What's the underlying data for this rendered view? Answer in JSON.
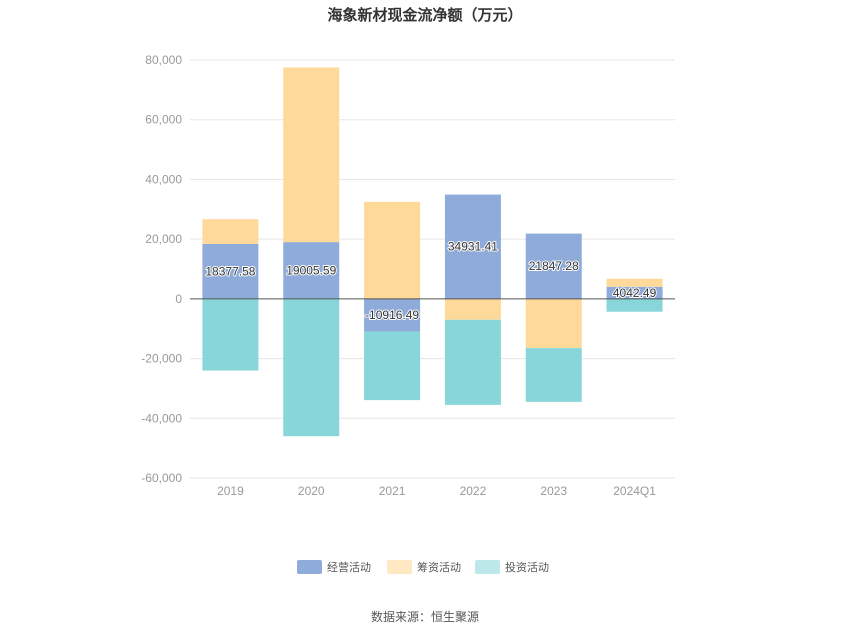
{
  "chart_data": {
    "type": "bar",
    "stacked": true,
    "title": "海象新材现金流净额（万元）",
    "categories": [
      "2019",
      "2020",
      "2021",
      "2022",
      "2023",
      "2024Q1"
    ],
    "series": [
      {
        "name": "经营活动",
        "color": "#8eabd9",
        "values": [
          18377.58,
          19005.59,
          -10916.49,
          34931.41,
          21847.28,
          4042.49
        ]
      },
      {
        "name": "筹资活动",
        "color": "#ffd99a",
        "values": [
          8300,
          58500,
          32500,
          -7000,
          -16500,
          2700
        ]
      },
      {
        "name": "投资活动",
        "color": "#88d6d9",
        "values": [
          -24000,
          -46000,
          -23000,
          -28500,
          -18000,
          -4300
        ]
      }
    ],
    "data_labels": [
      "18377.58",
      "19005.59",
      "-10916.49",
      "34931.41",
      "21847.28",
      "4042.49"
    ],
    "ylim": [
      -60000,
      80000
    ],
    "yticks": [
      80000,
      60000,
      40000,
      20000,
      0,
      -20000,
      -40000,
      -60000
    ],
    "ytick_labels": [
      "80,000",
      "60,000",
      "40,000",
      "20,000",
      "0",
      "-20,000",
      "-40,000",
      "-60,000"
    ],
    "legend_position": "bottom-center",
    "grid": true
  },
  "legend_colors": [
    "#8eabd9",
    "#ffe9c2",
    "#bde8ea"
  ],
  "source": "数据来源：恒生聚源"
}
